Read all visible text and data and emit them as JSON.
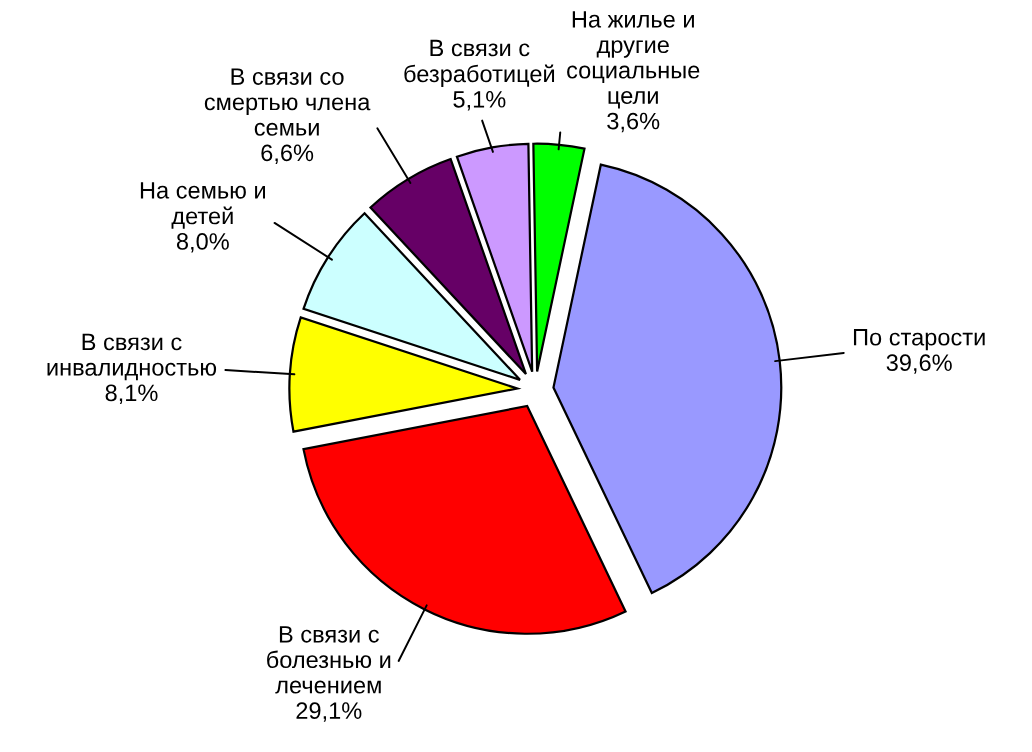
{
  "chart_data": {
    "type": "pie",
    "categories": [
      "По старости",
      "В связи с\nболезнью и\nлечением",
      "В связи с\nинвалидностью",
      "На семью и\nдетей",
      "В связи со\nсмертью члена\nсемьи",
      "В связи с\nбезработицей",
      "На жилье и\nдругие\nсоциальные\nцели"
    ],
    "values": [
      39.6,
      29.1,
      8.1,
      8.0,
      6.6,
      5.1,
      3.6
    ],
    "value_labels": [
      "39,6%",
      "29,1%",
      "8,1%",
      "8,0%",
      "6,6%",
      "5,1%",
      "3,6%"
    ],
    "colors": [
      "#9999ff",
      "#ff0000",
      "#ffff00",
      "#ccffff",
      "#660066",
      "#cc99ff",
      "#00ff00"
    ],
    "legend": false
  }
}
